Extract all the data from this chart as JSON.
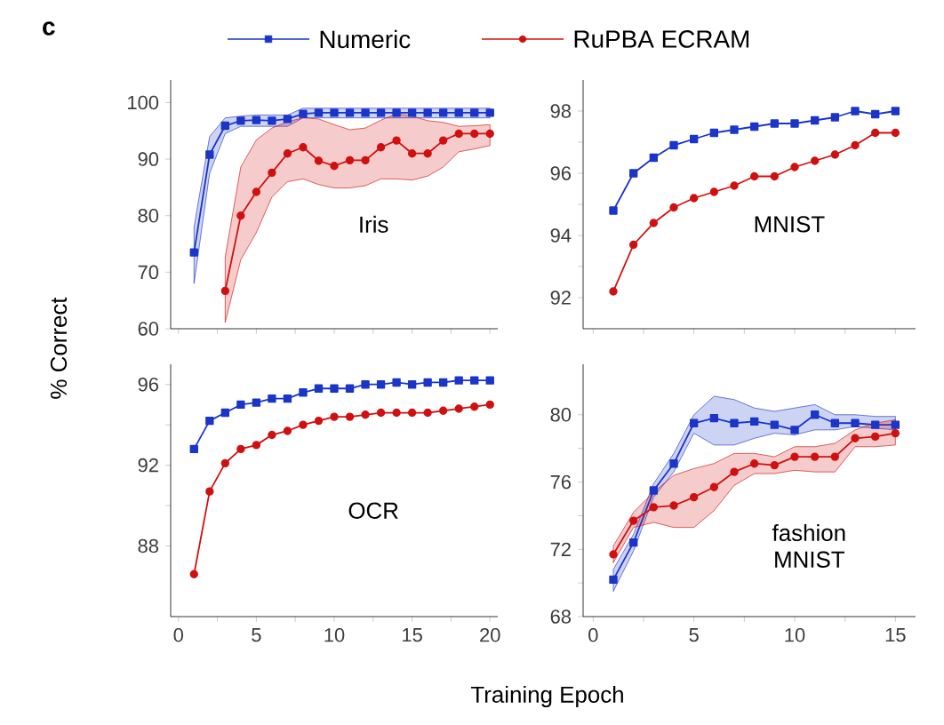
{
  "chart_data": [
    {
      "type": "line",
      "title": "c",
      "ylabel": "% Correct",
      "legend": "top",
      "annotations": [
        "Iris"
      ],
      "tick_labels": "y",
      "x": [
        1,
        2,
        3,
        4,
        5,
        6,
        7,
        8,
        9,
        10,
        11,
        12,
        13,
        14,
        15,
        16,
        17,
        18,
        19,
        20
      ],
      "xlim": [
        -0.5,
        20.5
      ],
      "xticks": [
        0,
        {
          "value": 2.5,
          "label": null
        },
        5,
        {
          "value": 7.5,
          "label": null
        },
        10,
        {
          "value": 12.5,
          "label": null
        },
        15,
        {
          "value": 17.5,
          "label": null
        },
        20
      ],
      "ylim": [
        60,
        104
      ],
      "yticks": [
        60,
        70,
        80,
        90,
        100
      ],
      "series": [
        {
          "name": "Numeric",
          "color": "#1a35c8",
          "marker": "square",
          "line_style": "solid",
          "values": [
            73.5,
            90.8,
            95.9,
            96.8,
            96.9,
            96.8,
            97.1,
            98.0,
            98.2,
            98.2,
            98.2,
            98.2,
            98.2,
            98.2,
            98.2,
            98.2,
            98.2,
            98.2,
            98.2,
            98.2
          ],
          "lower": [
            68,
            87.5,
            94.5,
            95.8,
            95.8,
            95.8,
            95.8,
            97.3,
            97.3,
            97.3,
            97.3,
            97.3,
            97.3,
            97.3,
            97.3,
            97.3,
            97.3,
            97.3,
            97.3,
            97.3
          ],
          "upper": [
            78,
            94,
            97.3,
            97.6,
            97.8,
            97.8,
            97.8,
            99,
            99,
            99,
            99,
            99,
            99,
            99,
            99,
            99,
            99,
            99,
            99,
            99
          ]
        },
        {
          "name": "RuPBA ECRAM",
          "color": "#d01010",
          "marker": "circle",
          "line_style": "solid",
          "values": [
            null,
            null,
            66.7,
            80.0,
            84.2,
            87.6,
            91.0,
            92.1,
            89.7,
            88.8,
            89.8,
            89.8,
            92.1,
            93.3,
            91.0,
            91.0,
            93.3,
            94.5,
            94.5,
            94.5
          ],
          "lower": [
            null,
            null,
            61.1,
            72.2,
            77.0,
            83.3,
            86.0,
            86.5,
            85.5,
            84.9,
            84.9,
            85.3,
            86.5,
            86.5,
            86.3,
            87.0,
            88.6,
            91.3,
            91.8,
            92.4
          ],
          "upper": [
            null,
            null,
            72.7,
            88.6,
            93.4,
            95.5,
            96.6,
            97.3,
            97.1,
            96.1,
            95.2,
            95.5,
            96.9,
            98.0,
            97.6,
            96.8,
            96.5,
            95.8,
            95.9,
            96.1
          ]
        }
      ]
    },
    {
      "type": "line",
      "annotations": [
        "MNIST"
      ],
      "tick_labels": "y",
      "x": [
        1,
        2,
        3,
        4,
        5,
        6,
        7,
        8,
        9,
        10,
        11,
        12,
        13,
        14,
        15
      ],
      "xlim": [
        -0.5,
        16
      ],
      "xticks": [
        0,
        {
          "value": 2.5,
          "label": null
        },
        5,
        {
          "value": 7.5,
          "label": null
        },
        10,
        {
          "value": 12.5,
          "label": null
        },
        15
      ],
      "ylim": [
        91,
        99
      ],
      "yticks": [
        92,
        {
          "value": 93,
          "label": null
        },
        94,
        {
          "value": 95,
          "label": null
        },
        96,
        {
          "value": 97,
          "label": null
        },
        98
      ],
      "series": [
        {
          "color": "#1a35c8",
          "marker": "square",
          "line_style": "solid",
          "values": [
            94.8,
            96.0,
            96.5,
            96.9,
            97.1,
            97.3,
            97.4,
            97.5,
            97.6,
            97.6,
            97.7,
            97.8,
            98.0,
            97.9,
            98.0
          ]
        },
        {
          "color": "#d01010",
          "marker": "circle",
          "line_style": "solid",
          "values": [
            92.2,
            93.7,
            94.4,
            94.9,
            95.2,
            95.4,
            95.6,
            95.9,
            95.9,
            96.2,
            96.4,
            96.6,
            96.9,
            97.3,
            97.3
          ]
        }
      ]
    },
    {
      "type": "line",
      "xlabel": "Training Epoch",
      "annotations": [
        "OCR"
      ],
      "x": [
        1,
        2,
        3,
        4,
        5,
        6,
        7,
        8,
        9,
        10,
        11,
        12,
        13,
        14,
        15,
        16,
        17,
        18,
        19,
        20
      ],
      "xlim": [
        -0.5,
        20.5
      ],
      "xticks": [
        0,
        {
          "value": 2.5,
          "label": null
        },
        5,
        {
          "value": 7.5,
          "label": null
        },
        10,
        {
          "value": 12.5,
          "label": null
        },
        15,
        {
          "value": 17.5,
          "label": null
        },
        20
      ],
      "ylim": [
        84.5,
        97
      ],
      "yticks": [
        88,
        {
          "value": 90,
          "label": null
        },
        92,
        {
          "value": 94,
          "label": null
        },
        96
      ],
      "series": [
        {
          "color": "#1a35c8",
          "marker": "square",
          "line_style": "solid",
          "values": [
            92.8,
            94.2,
            94.6,
            95.0,
            95.1,
            95.3,
            95.3,
            95.6,
            95.8,
            95.8,
            95.8,
            96.0,
            96.0,
            96.1,
            96.0,
            96.1,
            96.1,
            96.2,
            96.2,
            96.2
          ]
        },
        {
          "color": "#d01010",
          "marker": "circle",
          "line_style": "solid",
          "values": [
            86.6,
            90.7,
            92.1,
            92.8,
            93.0,
            93.5,
            93.7,
            94.0,
            94.2,
            94.4,
            94.4,
            94.5,
            94.6,
            94.6,
            94.6,
            94.6,
            94.7,
            94.8,
            94.9,
            95.0
          ]
        }
      ]
    },
    {
      "type": "line",
      "annotations": [
        "fashion MNIST"
      ],
      "x": [
        1,
        2,
        3,
        4,
        5,
        6,
        7,
        8,
        9,
        10,
        11,
        12,
        13,
        14,
        15
      ],
      "xlim": [
        -0.5,
        16
      ],
      "xticks": [
        0,
        {
          "value": 2.5,
          "label": null
        },
        5,
        {
          "value": 7.5,
          "label": null
        },
        10,
        {
          "value": 12.5,
          "label": null
        },
        15
      ],
      "ylim": [
        68,
        83
      ],
      "yticks": [
        68,
        {
          "value": 70,
          "label": null
        },
        72,
        {
          "value": 74,
          "label": null
        },
        76,
        {
          "value": 78,
          "label": null
        },
        80
      ],
      "series": [
        {
          "color": "#1a35c8",
          "marker": "square",
          "line_style": "solid",
          "values": [
            70.2,
            72.4,
            75.5,
            77.1,
            79.5,
            79.8,
            79.5,
            79.6,
            79.4,
            79.1,
            80.0,
            79.5,
            79.5,
            79.4,
            79.4
          ],
          "lower": [
            69.5,
            71.9,
            75.1,
            76.6,
            78.9,
            78.2,
            78.2,
            78.6,
            78.9,
            78.8,
            79.1,
            79.1,
            79.3,
            79.2,
            79.1
          ],
          "upper": [
            70.8,
            72.9,
            75.9,
            77.7,
            80.0,
            81.1,
            80.9,
            80.4,
            80.2,
            80.4,
            80.6,
            80.0,
            80.0,
            79.9,
            79.9
          ]
        },
        {
          "color": "#d01010",
          "marker": "circle",
          "line_style": "solid",
          "values": [
            71.7,
            73.7,
            74.5,
            74.6,
            75.1,
            75.7,
            76.6,
            77.1,
            77.0,
            77.5,
            77.5,
            77.5,
            78.6,
            78.7,
            78.9
          ],
          "lower": [
            71.2,
            73.3,
            73.6,
            73.3,
            73.3,
            74.3,
            75.8,
            76.5,
            76.5,
            76.7,
            76.6,
            76.6,
            78.1,
            78.1,
            78.2
          ],
          "upper": [
            72.2,
            74.2,
            75.4,
            76.4,
            76.8,
            77.1,
            77.7,
            77.7,
            77.5,
            78.1,
            78.1,
            78.3,
            79.1,
            79.5,
            79.7
          ]
        }
      ]
    }
  ]
}
